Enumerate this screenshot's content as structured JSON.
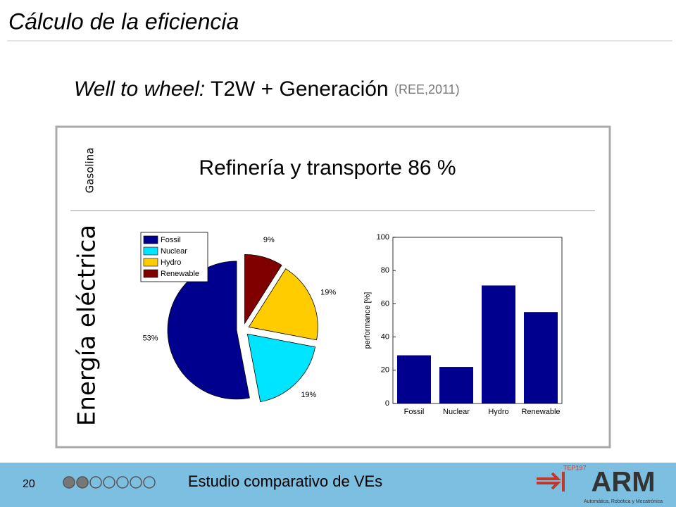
{
  "header": {
    "title": "Cálculo de la eficiencia"
  },
  "subtitle": {
    "lead": "Well to wheel:",
    "main": "T2W + Generación",
    "source": "(REE,2011)"
  },
  "panel": {
    "top_label": "Gasolina",
    "top_text": "Refinería y transporte 86 %",
    "side_label": "Energía eléctrica"
  },
  "chart_data": [
    {
      "type": "pie",
      "categories": [
        "Fossil",
        "Nuclear",
        "Hydro",
        "Renewable"
      ],
      "values": [
        53,
        19,
        19,
        9
      ],
      "value_labels": [
        "53%",
        "19%",
        "19%",
        "9%"
      ],
      "colors": [
        "#00008f",
        "#00e5ff",
        "#ffcc00",
        "#800000"
      ],
      "legend": "upper left"
    },
    {
      "type": "bar",
      "categories": [
        "Fossil",
        "Nuclear",
        "Hydro",
        "Renewable"
      ],
      "values": [
        29,
        22,
        71,
        55
      ],
      "color": "#00008f",
      "ylabel": "performance [%]",
      "ylim": [
        0,
        100
      ],
      "yticks": [
        0,
        20,
        40,
        60,
        80,
        100
      ],
      "grid": false
    }
  ],
  "footer": {
    "page": "20",
    "text": "Estudio comparativo de VEs",
    "logo_tag": "TEP197",
    "logo": "ARM",
    "logo_sub": "Automática, Robótica y Mecatrónica"
  }
}
